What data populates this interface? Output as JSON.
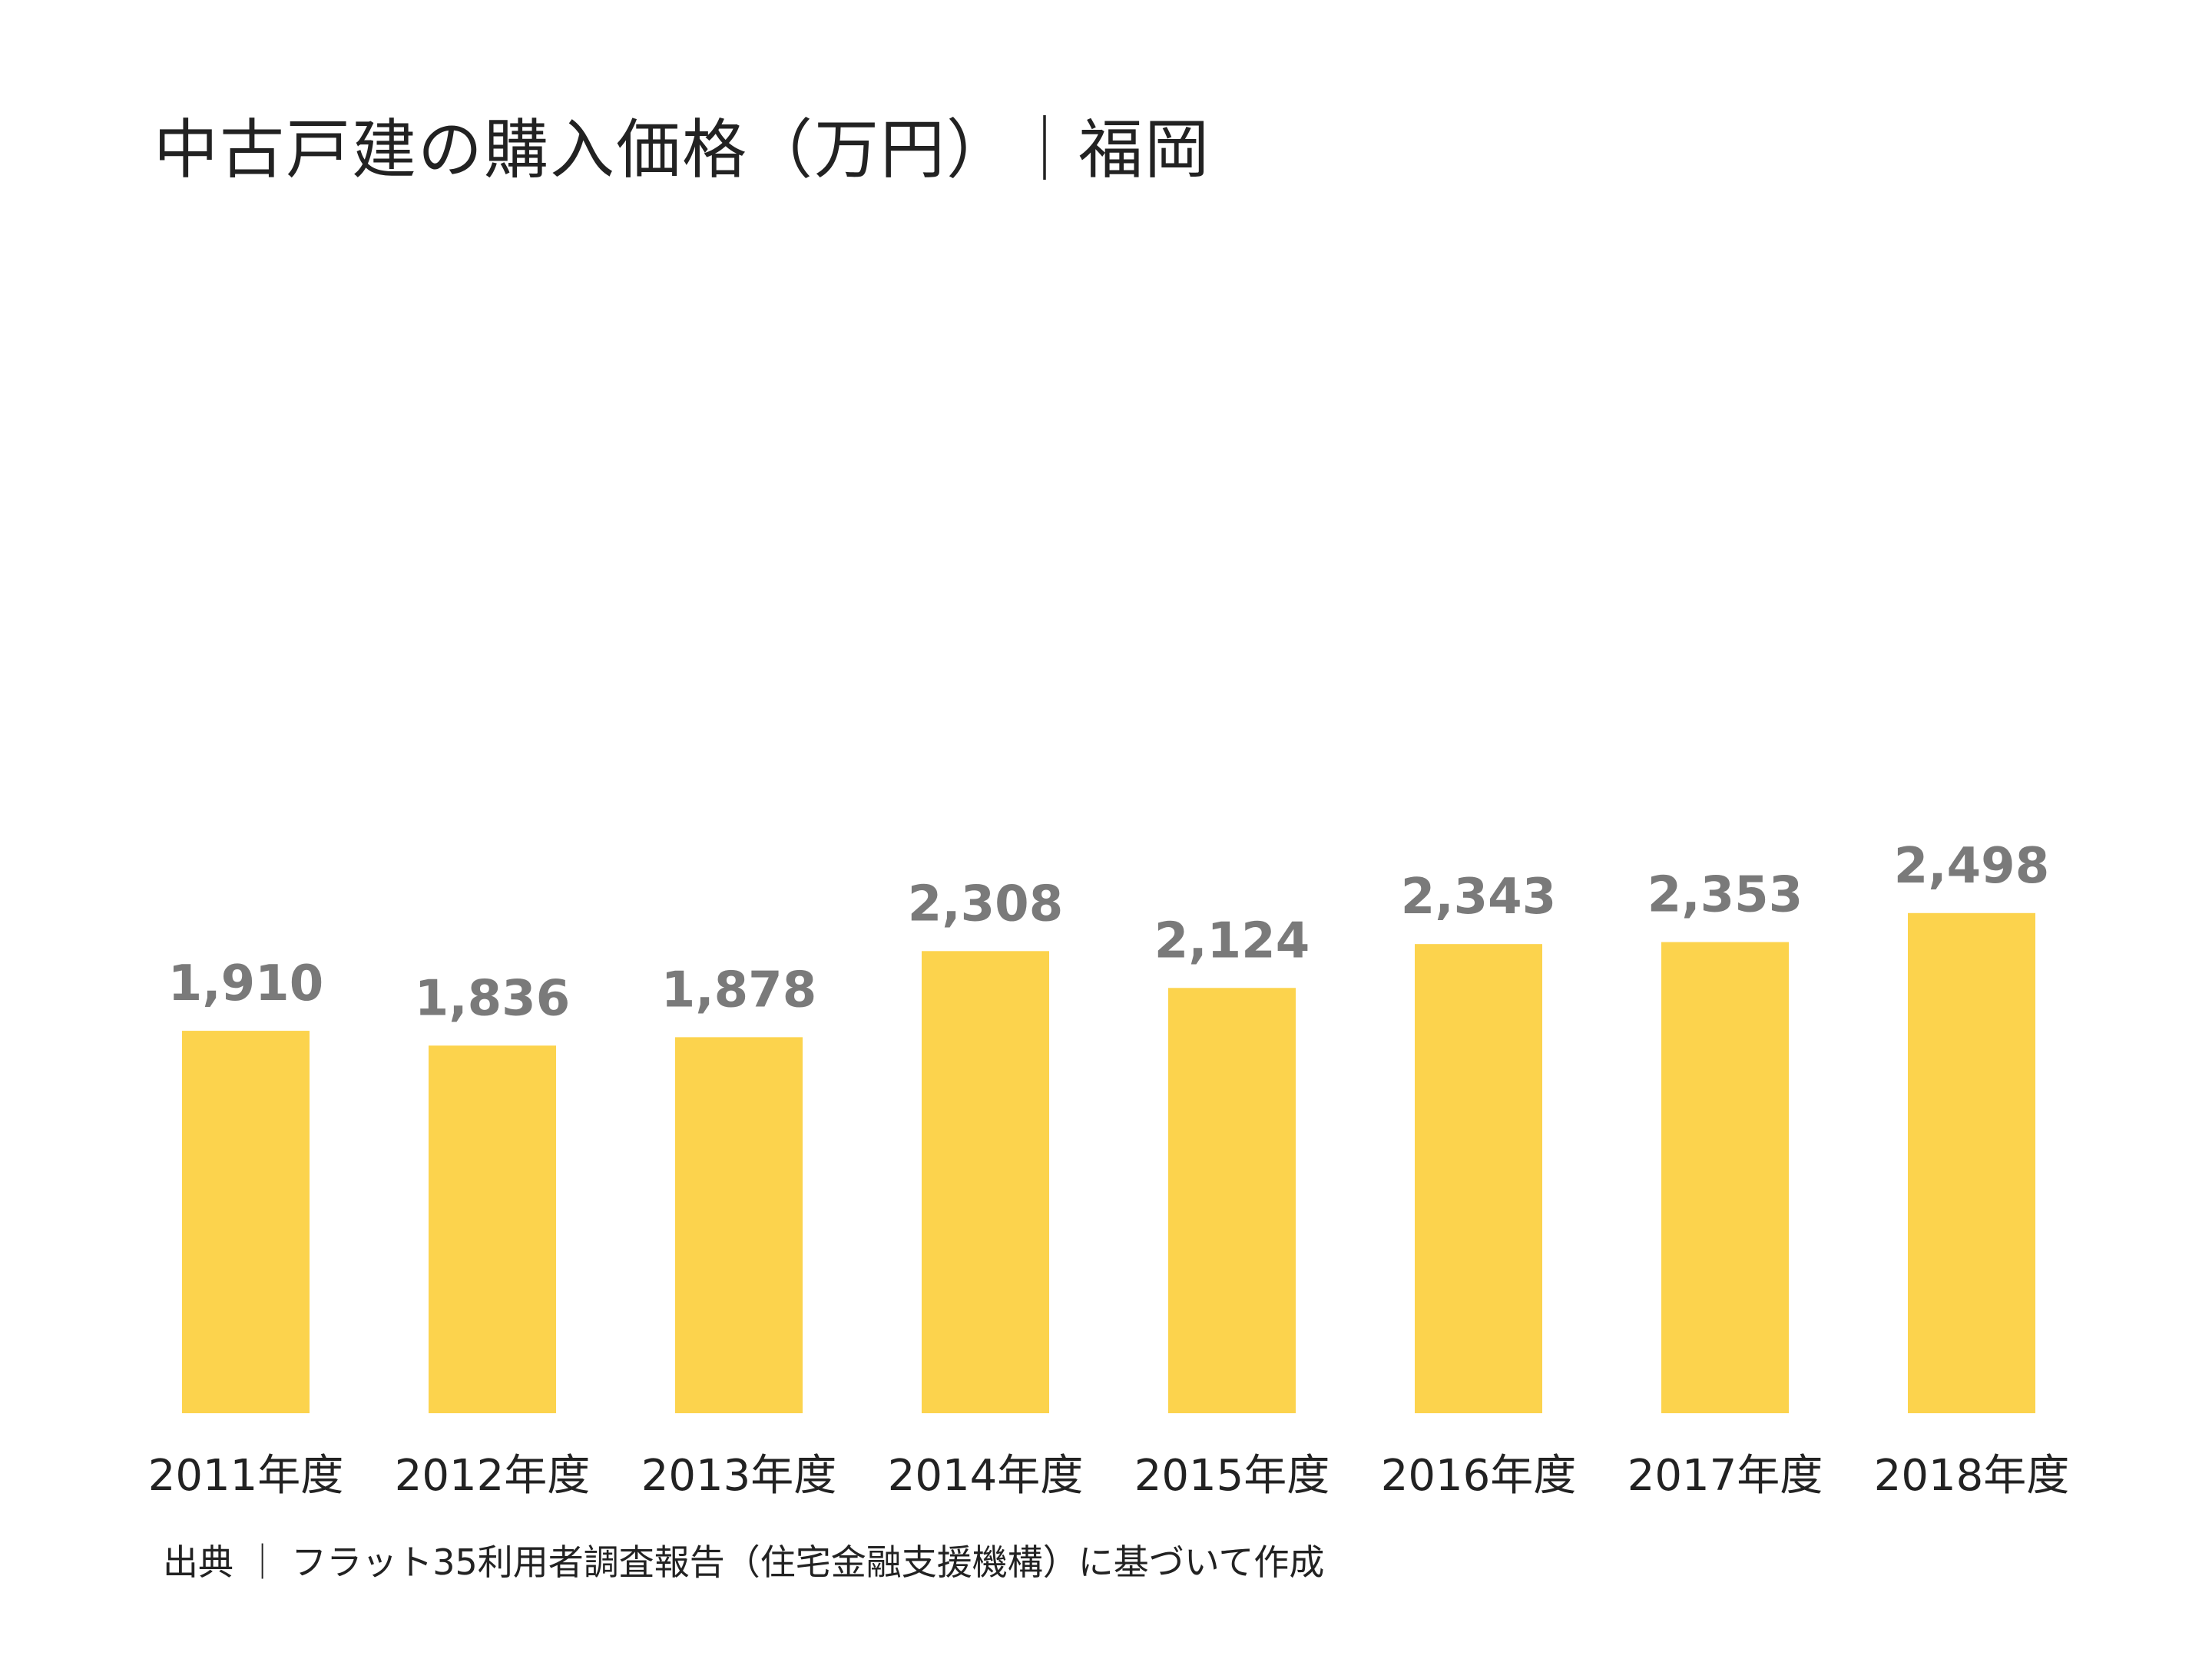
{
  "title": "中古戸建の購入価格（万円）｜福岡",
  "source": "出典 ｜ フラット35利用者調査報告（住宅金融支援機構）に基づいて作成",
  "colors": {
    "bar": "#FCD34D",
    "value_label": "#7a7a7a",
    "category_label": "#222222"
  },
  "chart_data": {
    "type": "bar",
    "categories": [
      "2011年度",
      "2012年度",
      "2013年度",
      "2014年度",
      "2015年度",
      "2016年度",
      "2017年度",
      "2018年度"
    ],
    "values": [
      1910,
      1836,
      1878,
      2308,
      2124,
      2343,
      2353,
      2498
    ],
    "value_labels": [
      "1,910",
      "1,836",
      "1,878",
      "2,308",
      "2,124",
      "2,343",
      "2,353",
      "2,498"
    ],
    "ylim": [
      0,
      2500
    ],
    "grid": false,
    "legend": "none",
    "data_labels": "above-bars"
  }
}
